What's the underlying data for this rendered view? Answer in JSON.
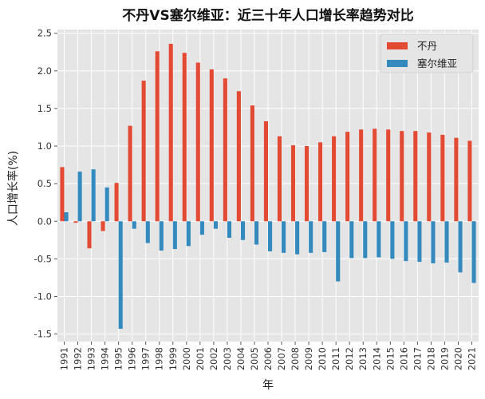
{
  "chart_data": {
    "type": "bar",
    "title": "不丹VS塞尔维亚：近三十年人口增长率趋势对比",
    "xlabel": "年",
    "ylabel": "人口增长率(%)",
    "ylim": [
      -1.6,
      2.55
    ],
    "yticks": [
      -1.5,
      -1.0,
      -0.5,
      0.0,
      0.5,
      1.0,
      1.5,
      2.0,
      2.5
    ],
    "ytick_labels": [
      "-1.5",
      "-1.0",
      "-0.5",
      "0.0",
      "0.5",
      "1.0",
      "1.5",
      "2.0",
      "2.5"
    ],
    "grid": true,
    "legend_position": "top-right",
    "categories": [
      "1991",
      "1992",
      "1993",
      "1994",
      "1995",
      "1996",
      "1997",
      "1998",
      "1999",
      "2000",
      "2001",
      "2002",
      "2003",
      "2004",
      "2005",
      "2006",
      "2007",
      "2008",
      "2009",
      "2010",
      "2011",
      "2012",
      "2013",
      "2014",
      "2015",
      "2016",
      "2017",
      "2018",
      "2019",
      "2020",
      "2021"
    ],
    "series": [
      {
        "name": "不丹",
        "color": "#E24A33",
        "values": [
          0.72,
          -0.02,
          -0.36,
          -0.13,
          0.51,
          1.27,
          1.87,
          2.26,
          2.36,
          2.24,
          2.11,
          2.02,
          1.9,
          1.73,
          1.54,
          1.33,
          1.13,
          1.01,
          1.0,
          1.05,
          1.13,
          1.19,
          1.22,
          1.23,
          1.22,
          1.2,
          1.2,
          1.18,
          1.15,
          1.11,
          1.07
        ]
      },
      {
        "name": "塞尔维亚",
        "color": "#348ABD",
        "values": [
          0.12,
          0.66,
          0.69,
          0.45,
          -1.43,
          -0.1,
          -0.29,
          -0.39,
          -0.37,
          -0.33,
          -0.18,
          -0.1,
          -0.22,
          -0.25,
          -0.31,
          -0.4,
          -0.42,
          -0.44,
          -0.42,
          -0.41,
          -0.8,
          -0.49,
          -0.49,
          -0.48,
          -0.5,
          -0.53,
          -0.54,
          -0.56,
          -0.55,
          -0.68,
          -0.82
        ]
      }
    ]
  }
}
